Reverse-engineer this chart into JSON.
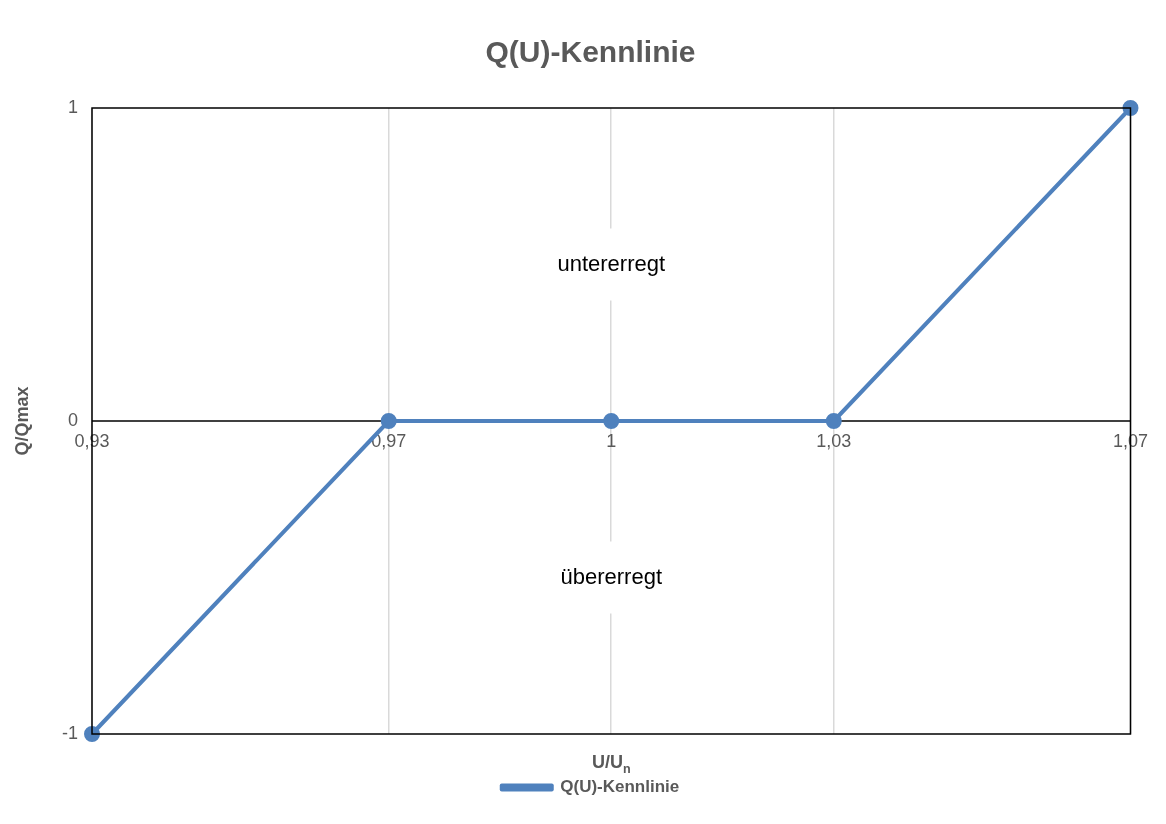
{
  "chart_data": {
    "type": "line",
    "title": "Q(U)-Kennlinie",
    "xlabel": "U/U$_{n}$",
    "ylabel": "Q/Qmax",
    "x": [
      0.93,
      0.97,
      1,
      1.03,
      1.07
    ],
    "series": [
      {
        "name": "Q(U)-Kennlinie",
        "color": "#4f81bd",
        "values": [
          -1,
          0,
          0,
          0,
          1
        ]
      }
    ],
    "xlim": [
      0.93,
      1.07
    ],
    "xticks": [
      {
        "value": 0.93,
        "label": "0,93"
      },
      {
        "value": 0.97,
        "label": "0,97"
      },
      {
        "value": 1,
        "label": "1"
      },
      {
        "value": 1.03,
        "label": "1,03"
      },
      {
        "value": 1.07,
        "label": "1,07"
      }
    ],
    "ylim": [
      -1,
      1
    ],
    "yticks": [
      -1,
      0,
      1
    ],
    "grid": "x",
    "legend": "bottom",
    "marker": "circle",
    "line_style": "solid",
    "annotations": [
      "untererregt",
      "übererregt"
    ]
  }
}
